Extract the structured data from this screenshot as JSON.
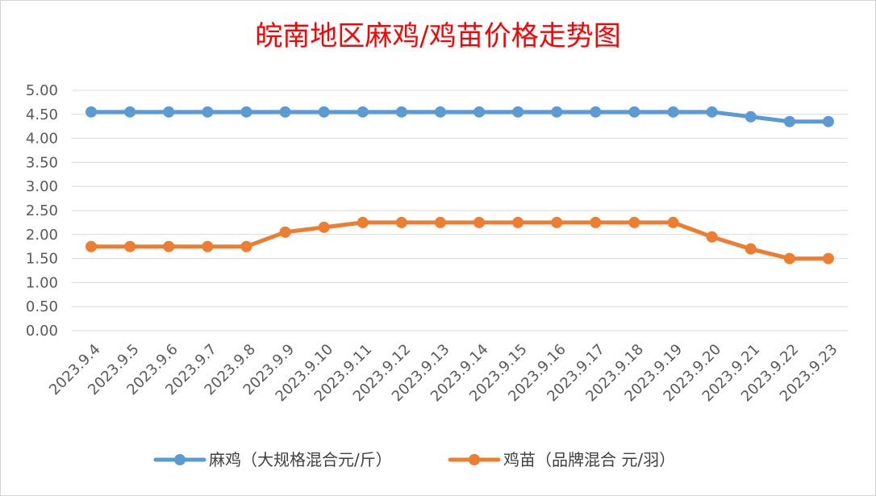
{
  "colors": {
    "title": "#ff0000",
    "series_1": "#5b9bd5",
    "series_2": "#ed7d31",
    "grid": "#d9d9d9",
    "tick_text": "#595959"
  },
  "chart_data": {
    "type": "line",
    "title": "皖南地区麻鸡/鸡苗价格走势图",
    "xlabel": "",
    "ylabel": "",
    "ylim": [
      0,
      5
    ],
    "yticks": [
      "0.00",
      "0.50",
      "1.00",
      "1.50",
      "2.00",
      "2.50",
      "3.00",
      "3.50",
      "4.00",
      "4.50",
      "5.00"
    ],
    "grid": true,
    "legend_position": "bottom",
    "categories": [
      "2023.9.4",
      "2023.9.5",
      "2023.9.6",
      "2023.9.7",
      "2023.9.8",
      "2023.9.9",
      "2023.9.10",
      "2023.9.11",
      "2023.9.12",
      "2023.9.13",
      "2023.9.14",
      "2023.9.15",
      "2023.9.16",
      "2023.9.17",
      "2023.9.18",
      "2023.9.19",
      "2023.9.20",
      "2023.9.21",
      "2023.9.22",
      "2023.9.23"
    ],
    "series": [
      {
        "name": "麻鸡（大规格混合元/斤）",
        "color": "#5b9bd5",
        "values": [
          4.55,
          4.55,
          4.55,
          4.55,
          4.55,
          4.55,
          4.55,
          4.55,
          4.55,
          4.55,
          4.55,
          4.55,
          4.55,
          4.55,
          4.55,
          4.55,
          4.55,
          4.45,
          4.35,
          4.35
        ]
      },
      {
        "name": "鸡苗（品牌混合 元/羽）",
        "color": "#ed7d31",
        "values": [
          1.75,
          1.75,
          1.75,
          1.75,
          1.75,
          2.05,
          2.15,
          2.25,
          2.25,
          2.25,
          2.25,
          2.25,
          2.25,
          2.25,
          2.25,
          2.25,
          1.95,
          1.7,
          1.5,
          1.5
        ]
      }
    ]
  }
}
